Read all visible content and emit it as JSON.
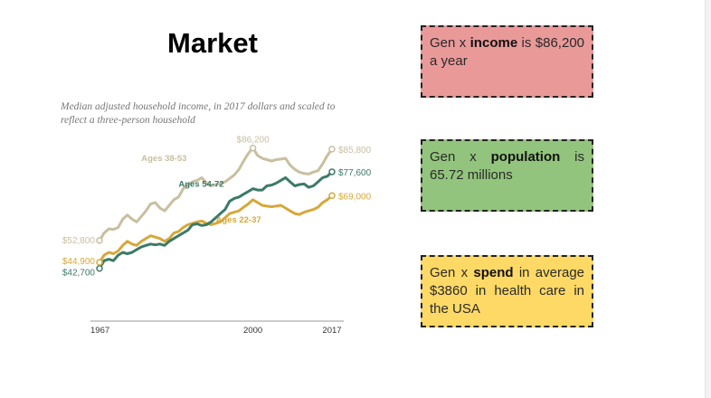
{
  "slide": {
    "title": "Market"
  },
  "cards": {
    "income": {
      "pre": "Gen x ",
      "bold": "income",
      "post": " is $86,200 a year",
      "color": "#ea9999"
    },
    "population": {
      "pre": "Gen x ",
      "bold": "population",
      "post": " is 65.72 millions",
      "color": "#93c47d"
    },
    "spend": {
      "pre": "Gen x ",
      "bold": "spend",
      "post": " in average $3860 in health care in the USA",
      "color": "#ffd966"
    }
  },
  "chart_data": {
    "type": "line",
    "subtitle": "Median adjusted household income, in 2017 dollars and scaled to reflect a three-person household",
    "x_ticks": [
      "1967",
      "2000",
      "2017"
    ],
    "xlim": [
      1967,
      2017
    ],
    "ylim": [
      40000,
      90000
    ],
    "grid": false,
    "series": [
      {
        "name": "Ages 38-53",
        "color": "#c8bfa0",
        "start_label": "$52,800",
        "end_label": "$85,800",
        "peak_label": "$86,200",
        "peak_year": 2000,
        "peak_value": 86200,
        "x": [
          1967,
          1968,
          1969,
          1970,
          1971,
          1972,
          1973,
          1974,
          1975,
          1976,
          1977,
          1978,
          1979,
          1980,
          1981,
          1982,
          1983,
          1984,
          1985,
          1986,
          1987,
          1988,
          1989,
          1990,
          1991,
          1992,
          1993,
          1994,
          1995,
          1996,
          1997,
          1998,
          1999,
          2000,
          2001,
          2002,
          2003,
          2004,
          2005,
          2006,
          2007,
          2008,
          2009,
          2010,
          2011,
          2012,
          2013,
          2014,
          2015,
          2016,
          2017
        ],
        "values": [
          52800,
          55500,
          57000,
          56800,
          57500,
          60500,
          62000,
          60500,
          59500,
          61500,
          63500,
          66000,
          66500,
          64500,
          63500,
          65500,
          67500,
          68500,
          71500,
          73000,
          74000,
          74500,
          75500,
          73500,
          72500,
          73000,
          73200,
          74000,
          75200,
          76500,
          78500,
          81500,
          84200,
          86200,
          83500,
          82500,
          82000,
          81500,
          82000,
          82200,
          82500,
          80000,
          78500,
          77500,
          77000,
          76800,
          77500,
          78000,
          80500,
          83500,
          85800
        ]
      },
      {
        "name": "Ages 54-72",
        "color": "#3c7a68",
        "start_label": "$42,700",
        "end_label": "$77,600",
        "x": [
          1967,
          1968,
          1969,
          1970,
          1971,
          1972,
          1973,
          1974,
          1975,
          1976,
          1977,
          1978,
          1979,
          1980,
          1981,
          1982,
          1983,
          1984,
          1985,
          1986,
          1987,
          1988,
          1989,
          1990,
          1991,
          1992,
          1993,
          1994,
          1995,
          1996,
          1997,
          1998,
          1999,
          2000,
          2001,
          2002,
          2003,
          2004,
          2005,
          2006,
          2007,
          2008,
          2009,
          2010,
          2011,
          2012,
          2013,
          2014,
          2015,
          2016,
          2017
        ],
        "values": [
          42700,
          45500,
          46000,
          45500,
          47500,
          48500,
          48000,
          48500,
          49500,
          50500,
          51000,
          51500,
          51200,
          51500,
          51000,
          52500,
          53500,
          54500,
          55500,
          56500,
          58500,
          58800,
          58200,
          58500,
          59500,
          61000,
          62500,
          64000,
          67000,
          68000,
          68500,
          69500,
          70500,
          71500,
          71000,
          71000,
          72500,
          72800,
          73500,
          74500,
          75500,
          74000,
          72500,
          73000,
          73200,
          72000,
          72500,
          74000,
          75500,
          76000,
          77600
        ]
      },
      {
        "name": "Ages 22-37",
        "color": "#d6a83b",
        "start_label": "$44,900",
        "end_label": "$69,000",
        "x": [
          1967,
          1968,
          1969,
          1970,
          1971,
          1972,
          1973,
          1974,
          1975,
          1976,
          1977,
          1978,
          1979,
          1980,
          1981,
          1982,
          1983,
          1984,
          1985,
          1986,
          1987,
          1988,
          1989,
          1990,
          1991,
          1992,
          1993,
          1994,
          1995,
          1996,
          1997,
          1998,
          1999,
          2000,
          2001,
          2002,
          2003,
          2004,
          2005,
          2006,
          2007,
          2008,
          2009,
          2010,
          2011,
          2012,
          2013,
          2014,
          2015,
          2016,
          2017
        ],
        "values": [
          44900,
          47500,
          48500,
          48000,
          49000,
          51000,
          52500,
          51500,
          51000,
          52500,
          53500,
          54500,
          54000,
          53500,
          52500,
          53500,
          55500,
          56000,
          57500,
          58500,
          59000,
          59500,
          59800,
          59000,
          58500,
          59000,
          59500,
          61000,
          62500,
          63000,
          63500,
          64800,
          66000,
          67500,
          66500,
          65500,
          65200,
          65000,
          65200,
          65500,
          64500,
          63500,
          62500,
          62200,
          63000,
          63500,
          64000,
          64800,
          66500,
          67500,
          69000
        ]
      }
    ]
  }
}
